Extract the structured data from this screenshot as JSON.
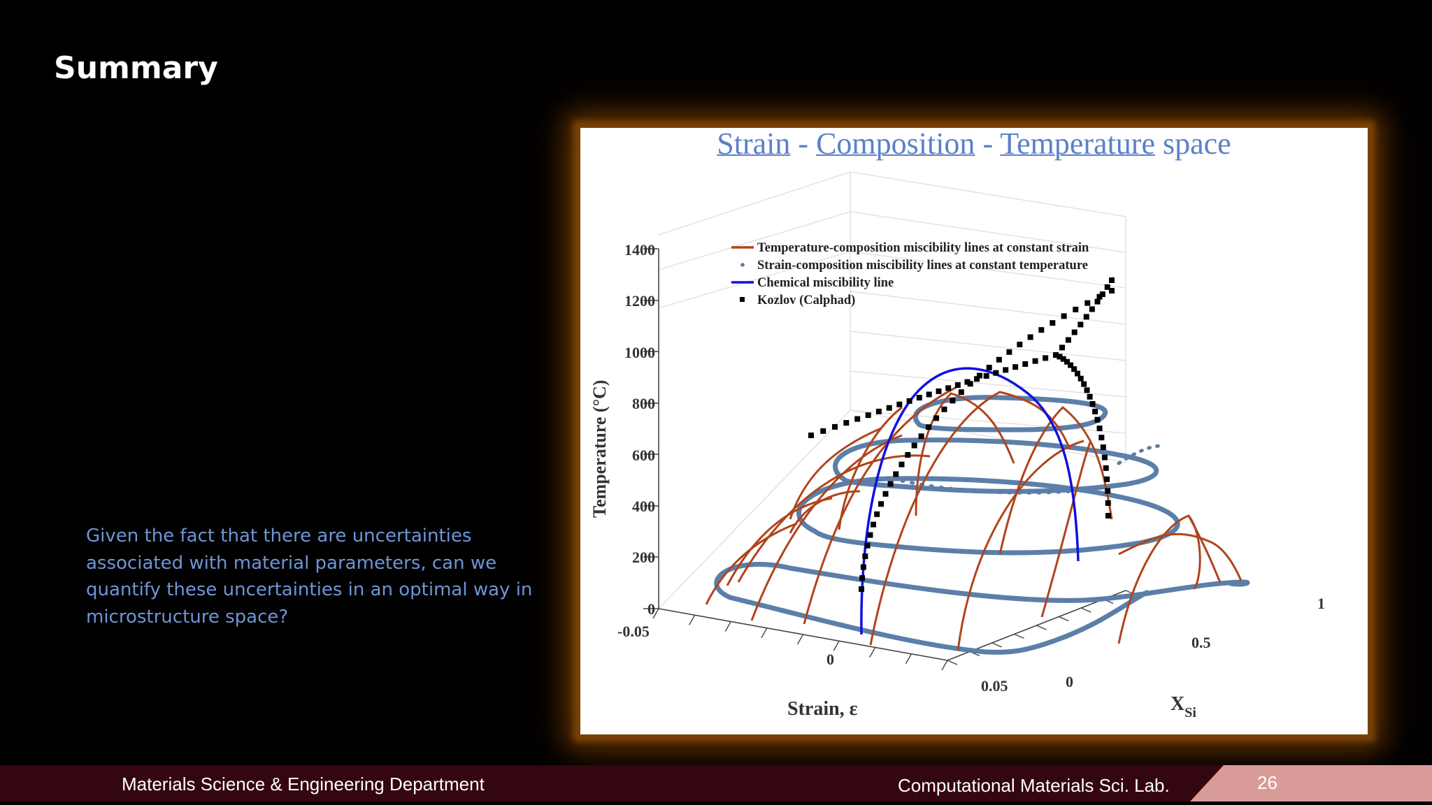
{
  "slide": {
    "title": "Summary",
    "body": "Given the fact that there are uncertainties associated with material parameters, can we quantify these uncertainties in an optimal way in microstructure space?"
  },
  "figure": {
    "heading": {
      "word1": "Strain",
      "sep1": " - ",
      "word2": "Composition",
      "sep2": " - ",
      "word3": "Temperature",
      "tail": " space"
    }
  },
  "chart_data": {
    "type": "3d-line-scatter",
    "zlabel": "Temperature (°C)",
    "xlabel": "Strain, ε",
    "ylabel": "X",
    "ylabel_sub": "Si",
    "z_ticks": [
      "1400",
      "1200",
      "1000",
      "800",
      "600",
      "400",
      "200",
      "0"
    ],
    "zlim": [
      0,
      1400
    ],
    "x_ticks": [
      "-0.05",
      "0",
      "0.05"
    ],
    "xlim": [
      -0.05,
      0.05
    ],
    "y_ticks": [
      "0",
      "0.5",
      "1"
    ],
    "ylim": [
      0,
      1
    ],
    "grid": true,
    "legend_position": "top-left",
    "legend": [
      {
        "label": "Temperature-composition miscibility lines at constant strain",
        "marker": "line",
        "color": "#b0441c"
      },
      {
        "label": "Strain-composition miscibility lines at constant temperature",
        "marker": "dot",
        "color": "#5b7fa8"
      },
      {
        "label": "Chemical miscibility line",
        "marker": "line",
        "color": "#1010e0"
      },
      {
        "label": "Kozlov (Calphad)",
        "marker": "square",
        "color": "#000000"
      }
    ],
    "series": [
      {
        "name": "Chemical miscibility line",
        "x": [
          0,
          0,
          0,
          0,
          0,
          0,
          0,
          0,
          0
        ],
        "y": [
          0,
          0.1,
          0.2,
          0.3,
          0.4,
          0.5,
          0.6,
          0.8,
          0.95
        ],
        "z": [
          0,
          500,
          700,
          830,
          890,
          900,
          880,
          720,
          0
        ]
      },
      {
        "name": "Kozlov (Calphad)",
        "x": [
          0,
          0,
          0,
          0,
          0,
          0,
          0,
          0
        ],
        "y": [
          0.02,
          0.05,
          0.1,
          0.2,
          0.4,
          0.6,
          0.8,
          0.95
        ],
        "z": [
          0,
          400,
          650,
          800,
          880,
          900,
          780,
          500
        ]
      }
    ],
    "constant_temperature_levels": [
      0,
      200,
      400,
      600,
      800
    ],
    "colors": {
      "tc_lines": "#b0441c",
      "sc_lines": "#5b7fa8",
      "chemical": "#1010e0",
      "kozlov": "#000000"
    }
  },
  "footer": {
    "department": "Materials Science & Engineering Department",
    "lab": "Computational Materials Sci. Lab.",
    "page": "26"
  }
}
